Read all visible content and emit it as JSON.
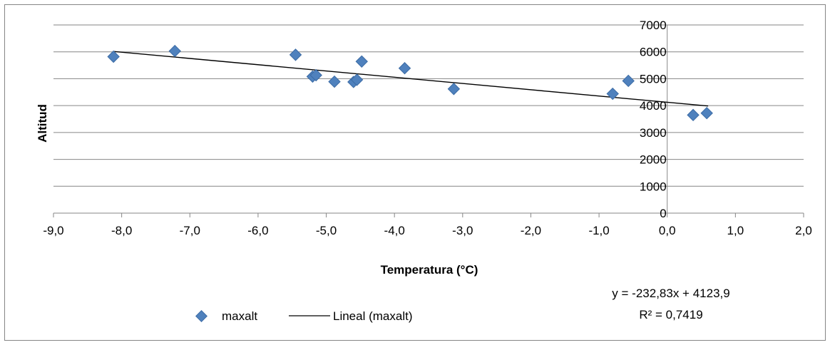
{
  "chart_data": {
    "type": "scatter",
    "title": "",
    "xlabel": "Temperatura (°C)",
    "ylabel": "Altitud",
    "xlim": [
      -9.0,
      2.0
    ],
    "ylim": [
      0,
      7000
    ],
    "x_ticks": [
      "-9,0",
      "-8,0",
      "-7,0",
      "-6,0",
      "-5,0",
      "-4,0",
      "-3,0",
      "-2,0",
      "-1,0",
      "0,0",
      "1,0",
      "2,0"
    ],
    "y_ticks": [
      "0",
      "1000",
      "2000",
      "3000",
      "4000",
      "5000",
      "6000",
      "7000"
    ],
    "grid": "horizontal",
    "legend_position": "bottom",
    "series": [
      {
        "name": "maxalt",
        "marker": "diamond",
        "color": "#4F81BD",
        "points": [
          {
            "x": -8.12,
            "y": 5820
          },
          {
            "x": -7.22,
            "y": 6030
          },
          {
            "x": -5.45,
            "y": 5890
          },
          {
            "x": -5.2,
            "y": 5080
          },
          {
            "x": -5.15,
            "y": 5130
          },
          {
            "x": -4.88,
            "y": 4890
          },
          {
            "x": -4.6,
            "y": 4880
          },
          {
            "x": -4.55,
            "y": 4960
          },
          {
            "x": -4.48,
            "y": 5640
          },
          {
            "x": -3.85,
            "y": 5390
          },
          {
            "x": -3.13,
            "y": 4620
          },
          {
            "x": -0.8,
            "y": 4440
          },
          {
            "x": -0.57,
            "y": 4920
          },
          {
            "x": 0.38,
            "y": 3650
          },
          {
            "x": 0.58,
            "y": 3720
          }
        ]
      }
    ],
    "trendline": {
      "name": "Lineal (maxalt)",
      "type": "linear",
      "color": "#000000",
      "slope": -232.83,
      "intercept": 4123.9,
      "x_range": [
        -8.12,
        0.6
      ],
      "equation_label": "y = -232,83x + 4123,9",
      "r2_label": "R² = 0,7419"
    }
  }
}
